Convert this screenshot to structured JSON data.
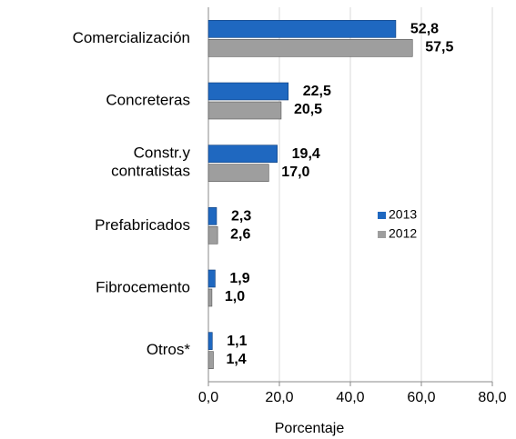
{
  "chart_data": {
    "type": "bar",
    "orientation": "horizontal",
    "categories": [
      "Comercialización",
      "Concreteras",
      "Constr.y contratistas",
      "Prefabricados",
      "Fibrocemento",
      "Otros*"
    ],
    "series": [
      {
        "name": "2013",
        "color": "#1f68c0",
        "values": [
          52.8,
          22.5,
          19.4,
          2.3,
          1.9,
          1.1
        ],
        "value_labels": [
          "52,8",
          "22,5",
          "19,4",
          "2,3",
          "1,9",
          "1,1"
        ],
        "label_color": "#222222"
      },
      {
        "name": "2012",
        "color": "#9e9e9e",
        "values": [
          57.5,
          20.5,
          17.0,
          2.6,
          1.0,
          1.4
        ],
        "value_labels": [
          "57,5",
          "20,5",
          "17,0",
          "2,6",
          "1,0",
          "1,4"
        ],
        "label_color": "#333399"
      }
    ],
    "xlim": [
      0,
      80
    ],
    "xticks": [
      {
        "value": 0,
        "label": "0,0"
      },
      {
        "value": 20,
        "label": "20,0"
      },
      {
        "value": 40,
        "label": "40,0"
      },
      {
        "value": 60,
        "label": "60,0"
      },
      {
        "value": 80,
        "label": "80,0"
      }
    ],
    "x_label": "Porcentaje",
    "grid": true,
    "legend": "right"
  }
}
